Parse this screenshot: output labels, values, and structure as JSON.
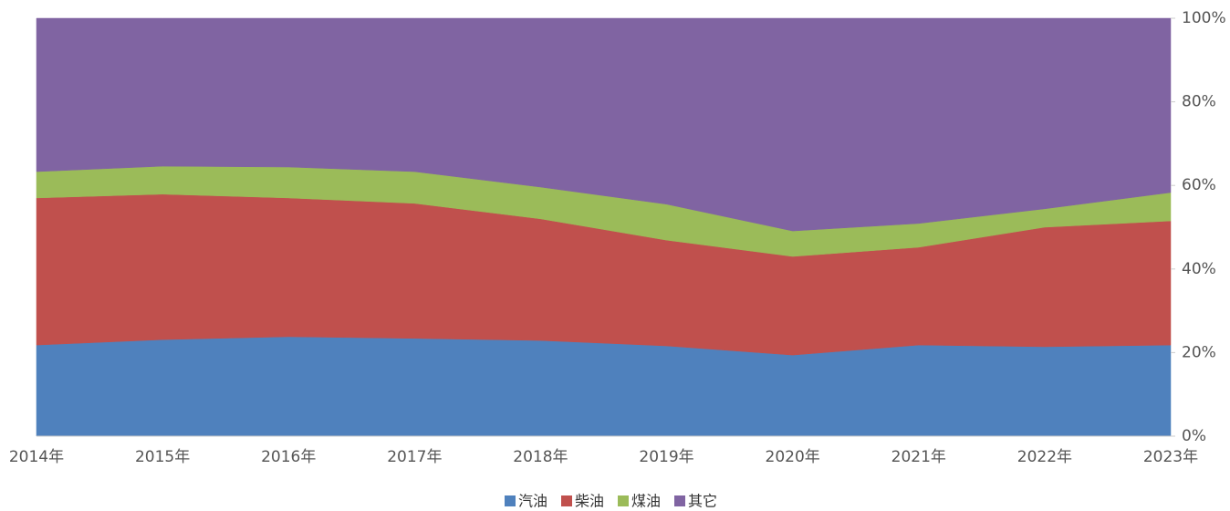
{
  "chart_data": {
    "type": "stacked_area",
    "categories": [
      "2014年",
      "2015年",
      "2016年",
      "2017年",
      "2018年",
      "2019年",
      "2020年",
      "2021年",
      "2022年",
      "2023年"
    ],
    "series": [
      {
        "name": "汽油",
        "color": "#4f81bd",
        "values": [
          21.8,
          23.1,
          23.8,
          23.4,
          22.9,
          21.6,
          19.4,
          21.8,
          21.4,
          21.8
        ]
      },
      {
        "name": "柴油",
        "color": "#c0504d",
        "values": [
          35.2,
          34.8,
          33.2,
          32.3,
          29.1,
          25.3,
          23.6,
          23.4,
          28.6,
          29.7
        ]
      },
      {
        "name": "煤油",
        "color": "#9bbb59",
        "values": [
          6.3,
          6.7,
          7.4,
          7.6,
          7.6,
          8.6,
          6.1,
          5.7,
          4.4,
          6.8
        ]
      },
      {
        "name": "其它",
        "color": "#8064a2",
        "values": [
          36.7,
          35.4,
          35.6,
          36.7,
          40.4,
          44.5,
          50.9,
          49.1,
          45.6,
          41.7
        ]
      }
    ],
    "ylim": [
      0,
      100
    ],
    "yticks": [
      {
        "value": 0,
        "label": "0%"
      },
      {
        "value": 20,
        "label": "20%"
      },
      {
        "value": 40,
        "label": "40%"
      },
      {
        "value": 60,
        "label": "60%"
      },
      {
        "value": 80,
        "label": "80%"
      },
      {
        "value": 100,
        "label": "100%"
      }
    ],
    "legend": "bottom"
  }
}
